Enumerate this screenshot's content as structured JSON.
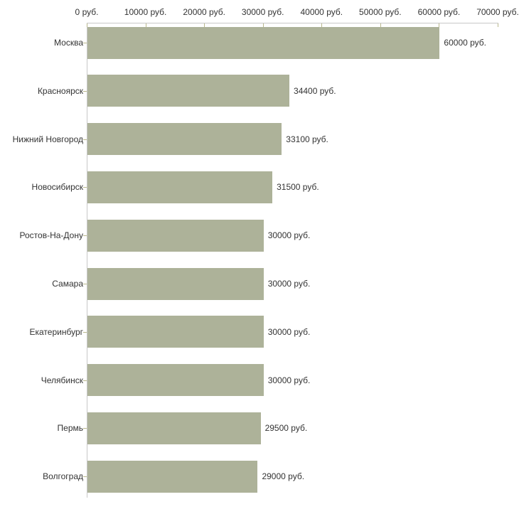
{
  "chart_data": {
    "type": "bar",
    "orientation": "horizontal",
    "title": "",
    "xlabel": "",
    "ylabel": "",
    "categories": [
      "Москва",
      "Красноярск",
      "Нижний Новгород",
      "Новосибирск",
      "Ростов-На-Дону",
      "Самара",
      "Екатеринбург",
      "Челябинск",
      "Пермь",
      "Волгоград"
    ],
    "values": [
      60000,
      34400,
      33100,
      31500,
      30000,
      30000,
      30000,
      30000,
      29500,
      29000
    ],
    "value_labels": [
      "60000 руб.",
      "34400 руб.",
      "33100 руб.",
      "31500 руб.",
      "30000 руб.",
      "30000 руб.",
      "30000 руб.",
      "30000 руб.",
      "29500 руб.",
      "29000 руб."
    ],
    "xlim": [
      0,
      70000
    ],
    "x_ticks": [
      {
        "value": 0,
        "label": "0 руб."
      },
      {
        "value": 10000,
        "label": "10000 руб."
      },
      {
        "value": 20000,
        "label": "20000 руб."
      },
      {
        "value": 30000,
        "label": "30000 руб."
      },
      {
        "value": 40000,
        "label": "40000 руб."
      },
      {
        "value": 50000,
        "label": "50000 руб."
      },
      {
        "value": 60000,
        "label": "60000 руб."
      },
      {
        "value": 70000,
        "label": "70000 руб."
      }
    ],
    "grid": "off",
    "legend": "none",
    "colors": {
      "bar": "#adb299",
      "axis_line": "#c8c8c8",
      "tick_mark": "#b9b88c",
      "text": "#333333",
      "background": "#ffffff"
    }
  }
}
